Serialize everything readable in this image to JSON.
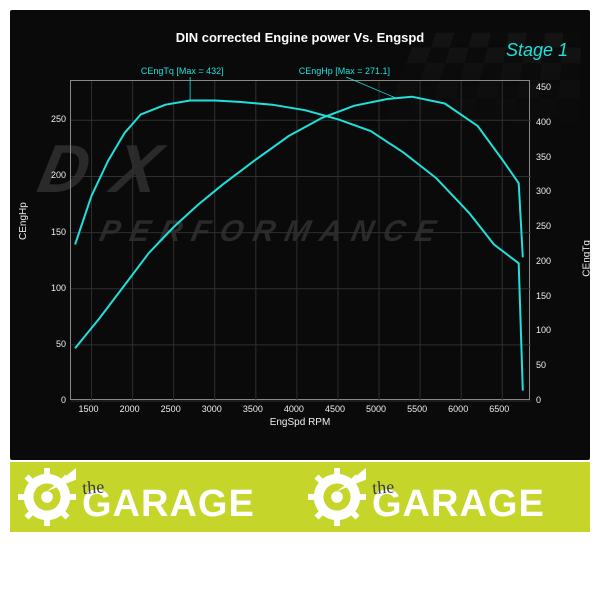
{
  "chart": {
    "type": "line-dual-axis",
    "title": "DIN corrected Engine power Vs. Engspd",
    "stage_label": "Stage 1",
    "xlabel": "EngSpd RPM",
    "ylabel_left": "CEngHp",
    "ylabel_right": "CEngTq",
    "x_ticks": [
      1500,
      2000,
      2500,
      3000,
      3500,
      4000,
      4500,
      5000,
      5500,
      6000,
      6500
    ],
    "y_left_ticks": [
      0,
      50,
      100,
      150,
      200,
      250
    ],
    "y_right_ticks": [
      0,
      50,
      100,
      150,
      200,
      250,
      300,
      350,
      400,
      450
    ],
    "xlim": [
      1250,
      6850
    ],
    "ylim_left": [
      0,
      285
    ],
    "ylim_right": [
      0,
      460
    ],
    "background_color": "#0a0a0a",
    "grid_color": "#2f2f2f",
    "axis_color": "#888888",
    "text_color": "#eeeeee",
    "accent_color": "#1fe0da",
    "series": {
      "torque": {
        "name": "CEngTq",
        "max_label": "CEngTq [Max = 432]",
        "axis": "right",
        "color": "#1fe0da",
        "line_width": 2,
        "points": [
          [
            1300,
            225
          ],
          [
            1500,
            295
          ],
          [
            1700,
            345
          ],
          [
            1900,
            385
          ],
          [
            2100,
            412
          ],
          [
            2400,
            426
          ],
          [
            2700,
            432
          ],
          [
            3000,
            432
          ],
          [
            3300,
            430
          ],
          [
            3700,
            426
          ],
          [
            4100,
            418
          ],
          [
            4500,
            405
          ],
          [
            4900,
            388
          ],
          [
            5300,
            357
          ],
          [
            5700,
            320
          ],
          [
            6100,
            270
          ],
          [
            6400,
            225
          ],
          [
            6700,
            198
          ],
          [
            6750,
            15
          ]
        ]
      },
      "power": {
        "name": "CEngHp",
        "max_label": "CEngHp [Max = 271.1]",
        "axis": "left",
        "color": "#1fe0da",
        "line_width": 2,
        "points": [
          [
            1300,
            47
          ],
          [
            1600,
            74
          ],
          [
            1900,
            103
          ],
          [
            2200,
            132
          ],
          [
            2500,
            155
          ],
          [
            2800,
            175
          ],
          [
            3100,
            193
          ],
          [
            3500,
            215
          ],
          [
            3900,
            236
          ],
          [
            4300,
            252
          ],
          [
            4700,
            263
          ],
          [
            5100,
            269
          ],
          [
            5400,
            271
          ],
          [
            5800,
            265
          ],
          [
            6200,
            245
          ],
          [
            6500,
            215
          ],
          [
            6700,
            194
          ],
          [
            6750,
            128
          ]
        ]
      }
    },
    "title_fontsize": 13,
    "tick_fontsize": 9,
    "label_fontsize": 10
  },
  "watermark": {
    "big_text": "D  X",
    "small_text": "PERFORMANCE",
    "text_color": "#2a2a2a"
  },
  "footer": {
    "background_color": "#c6d52a",
    "gear_color": "#ffffff",
    "logo_the": "the",
    "logo_main": "GARAGE",
    "the_color": "#3c3c3c",
    "main_color": "#ffffff"
  }
}
